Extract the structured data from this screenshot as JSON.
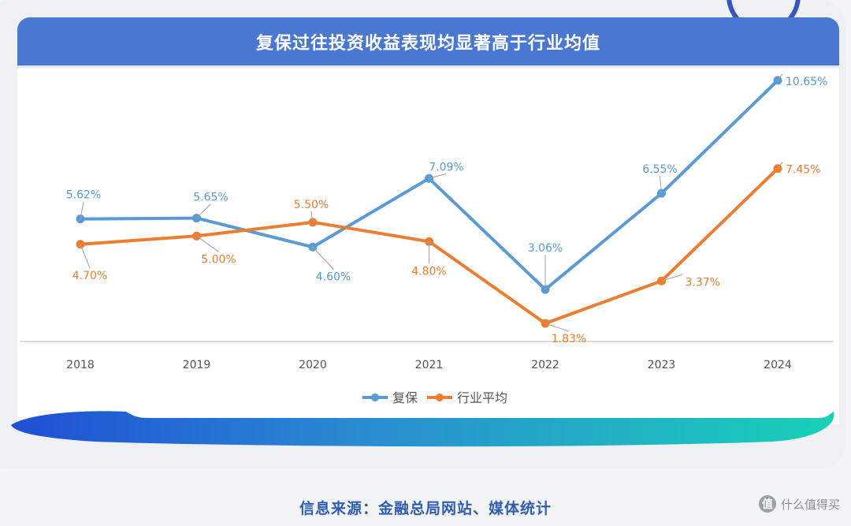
{
  "chart_data": {
    "type": "line",
    "title": "复保过往投资收益表现均显著高于行业均值",
    "categories": [
      "2018",
      "2019",
      "2020",
      "2021",
      "2022",
      "2023",
      "2024"
    ],
    "series": [
      {
        "name": "复保",
        "color": "#5b9bd5",
        "values": [
          5.62,
          5.65,
          4.6,
          7.09,
          3.06,
          6.55,
          10.65
        ],
        "labels": [
          "5.62%",
          "5.65%",
          "4.60%",
          "7.09%",
          "3.06%",
          "6.55%",
          "10.65%"
        ]
      },
      {
        "name": "行业平均",
        "color": "#ed7d31",
        "values": [
          4.7,
          5.0,
          5.5,
          4.8,
          1.83,
          3.37,
          7.45
        ],
        "labels": [
          "4.70%",
          "5.00%",
          "5.50%",
          "4.80%",
          "1.83%",
          "3.37%",
          "7.45%"
        ]
      }
    ],
    "ylim": [
      0,
      11
    ],
    "grid": false,
    "legend": "bottom-center"
  },
  "footer": {
    "source": "信息来源：金融总局网站、媒体统计",
    "watermark_logo": "值",
    "watermark_text": "什么值得买"
  }
}
